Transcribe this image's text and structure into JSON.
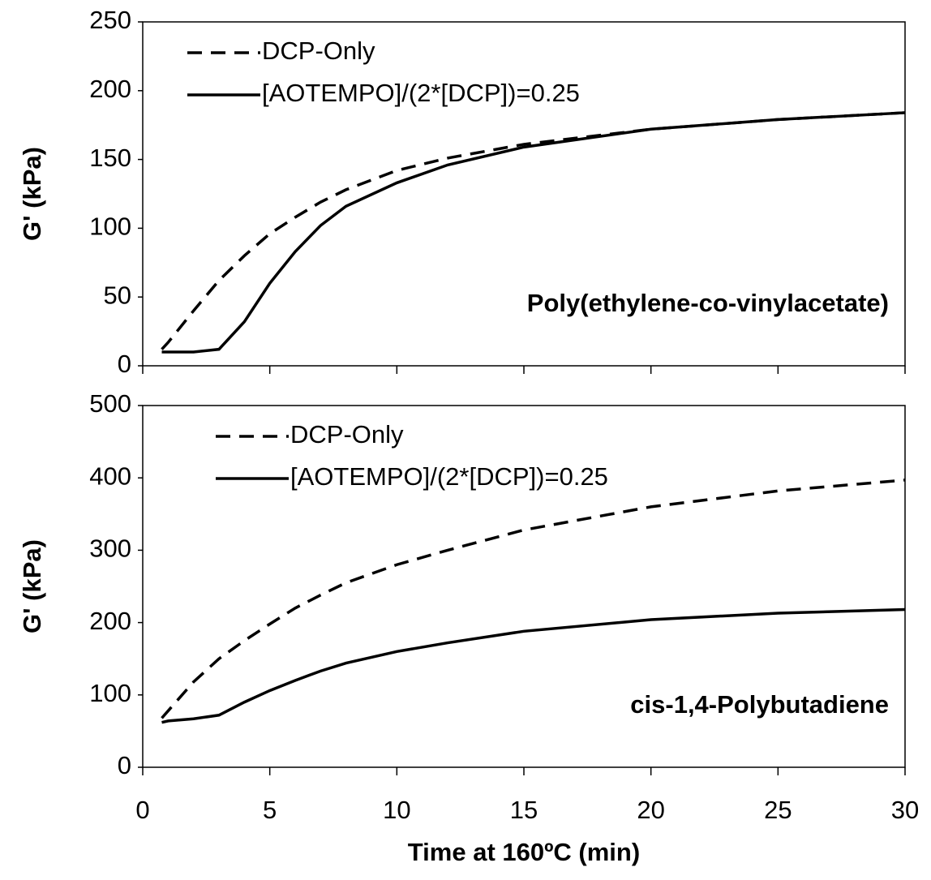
{
  "chart_data": [
    {
      "type": "line",
      "annotation": "Poly(ethylene-co-vinylacetate)",
      "ylabel": "G' (kPa)",
      "x": [
        0.75,
        1,
        2,
        3,
        4,
        5,
        6,
        7,
        8,
        10,
        12,
        15,
        20,
        25,
        30
      ],
      "series": [
        {
          "name": "DCP-Only",
          "color": "#000000",
          "line_style": "dashed",
          "values": [
            12,
            17,
            40,
            62,
            80,
            96,
            108,
            119,
            128,
            142,
            151,
            161,
            172,
            179,
            184
          ]
        },
        {
          "name": "[AOTEMPO]/(2*[DCP])=0.25",
          "color": "#000000",
          "line_style": "solid",
          "values": [
            10,
            10,
            10,
            12,
            32,
            60,
            83,
            102,
            116,
            133,
            146,
            159,
            172,
            179,
            184
          ]
        }
      ],
      "xlim": [
        0,
        30
      ],
      "xticks": [
        0,
        5,
        10,
        15,
        20,
        25,
        30
      ],
      "ylim": [
        0,
        250
      ],
      "yticks": [
        0,
        50,
        100,
        150,
        200,
        250
      ],
      "legend": "upper left",
      "grid": false
    },
    {
      "type": "line",
      "annotation": "cis-1,4-Polybutadiene",
      "ylabel": "G' (kPa)",
      "xlabel": "Time at 160ºC (min)",
      "x": [
        0.75,
        1,
        2,
        3,
        4,
        5,
        6,
        7,
        8,
        10,
        12,
        15,
        20,
        25,
        30
      ],
      "series": [
        {
          "name": "DCP-Only",
          "color": "#000000",
          "line_style": "dashed",
          "values": [
            68,
            78,
            118,
            150,
            175,
            198,
            220,
            238,
            255,
            280,
            300,
            328,
            360,
            382,
            397
          ]
        },
        {
          "name": "[AOTEMPO]/(2*[DCP])=0.25",
          "color": "#000000",
          "line_style": "solid",
          "values": [
            62,
            64,
            67,
            72,
            90,
            106,
            120,
            133,
            144,
            160,
            172,
            188,
            204,
            213,
            218
          ]
        }
      ],
      "xlim": [
        0,
        30
      ],
      "xticks": [
        0,
        5,
        10,
        15,
        20,
        25,
        30
      ],
      "ylim": [
        0,
        500
      ],
      "yticks": [
        0,
        100,
        200,
        300,
        400,
        500
      ],
      "legend": "upper left",
      "grid": false
    }
  ]
}
